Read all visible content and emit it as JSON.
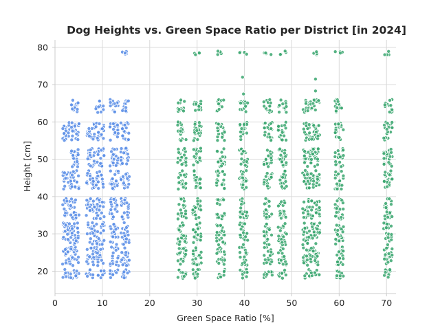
{
  "chart_data": {
    "type": "scatter",
    "title": "Dog Heights vs. Green Space Ratio per District [in 2024]",
    "xlabel": "Green Space Ratio [%]",
    "ylabel": "Height [cm]",
    "xlim": [
      0,
      72
    ],
    "ylim": [
      14,
      82
    ],
    "xticks": [
      0,
      10,
      20,
      30,
      40,
      50,
      60,
      70
    ],
    "yticks": [
      20,
      30,
      40,
      50,
      60,
      70,
      80
    ],
    "grid": true,
    "legend": "none",
    "colors": {
      "group_a": "#5b8ee6",
      "group_b": "#3aa66f",
      "edge": "#ffffff"
    },
    "height_bands": [
      [
        18,
        20.5
      ],
      [
        21.5,
        26.5
      ],
      [
        27,
        33
      ],
      [
        34,
        39.5
      ],
      [
        42,
        47
      ],
      [
        48,
        53
      ],
      [
        55,
        60
      ],
      [
        62.5,
        66
      ],
      [
        78,
        79
      ]
    ],
    "series": [
      {
        "group": "group_a",
        "x_columns": [
          2.5,
          4.2,
          7.5,
          9.5,
          12.5,
          14.8
        ],
        "bands": [
          [
            1,
            1,
            1,
            1,
            1,
            0,
            1,
            0,
            0
          ],
          [
            1,
            1,
            1,
            1,
            1,
            1,
            1,
            1,
            0
          ],
          [
            1,
            1,
            1,
            1,
            1,
            1,
            1,
            0,
            0
          ],
          [
            1,
            1,
            1,
            1,
            1,
            1,
            1,
            1,
            0
          ],
          [
            1,
            1,
            1,
            1,
            1,
            1,
            1,
            1,
            0
          ],
          [
            1,
            1,
            1,
            1,
            1,
            1,
            1,
            1,
            1
          ]
        ]
      },
      {
        "group": "group_b",
        "x_columns": [
          26.8,
          30,
          35,
          39.8,
          45,
          48,
          53.2,
          55,
          60,
          70.3
        ],
        "bands": [
          [
            1,
            1,
            1,
            1,
            1,
            1,
            1,
            1,
            0
          ],
          [
            1,
            1,
            1,
            1,
            1,
            1,
            1,
            1,
            1
          ],
          [
            1,
            1,
            1,
            1,
            1,
            1,
            1,
            1,
            1
          ],
          [
            1,
            1,
            1,
            1,
            1,
            1,
            1,
            1,
            1
          ],
          [
            1,
            1,
            1,
            1,
            1,
            1,
            1,
            1,
            1
          ],
          [
            1,
            1,
            1,
            1,
            1,
            1,
            1,
            1,
            1
          ],
          [
            1,
            1,
            1,
            1,
            1,
            1,
            1,
            1,
            0
          ],
          [
            1,
            1,
            1,
            1,
            1,
            1,
            1,
            1,
            1
          ],
          [
            1,
            1,
            1,
            1,
            1,
            1,
            1,
            1,
            1
          ],
          [
            1,
            1,
            1,
            1,
            1,
            1,
            1,
            1,
            1
          ]
        ]
      }
    ],
    "outliers": [
      {
        "group": "group_a",
        "x": 14.8,
        "y": 78.5
      },
      {
        "group": "group_b",
        "x": 39.6,
        "y": 72
      },
      {
        "group": "group_b",
        "x": 55,
        "y": 71.5
      },
      {
        "group": "group_b",
        "x": 55,
        "y": 68.3
      },
      {
        "group": "group_b",
        "x": 39.8,
        "y": 67.5
      }
    ]
  }
}
